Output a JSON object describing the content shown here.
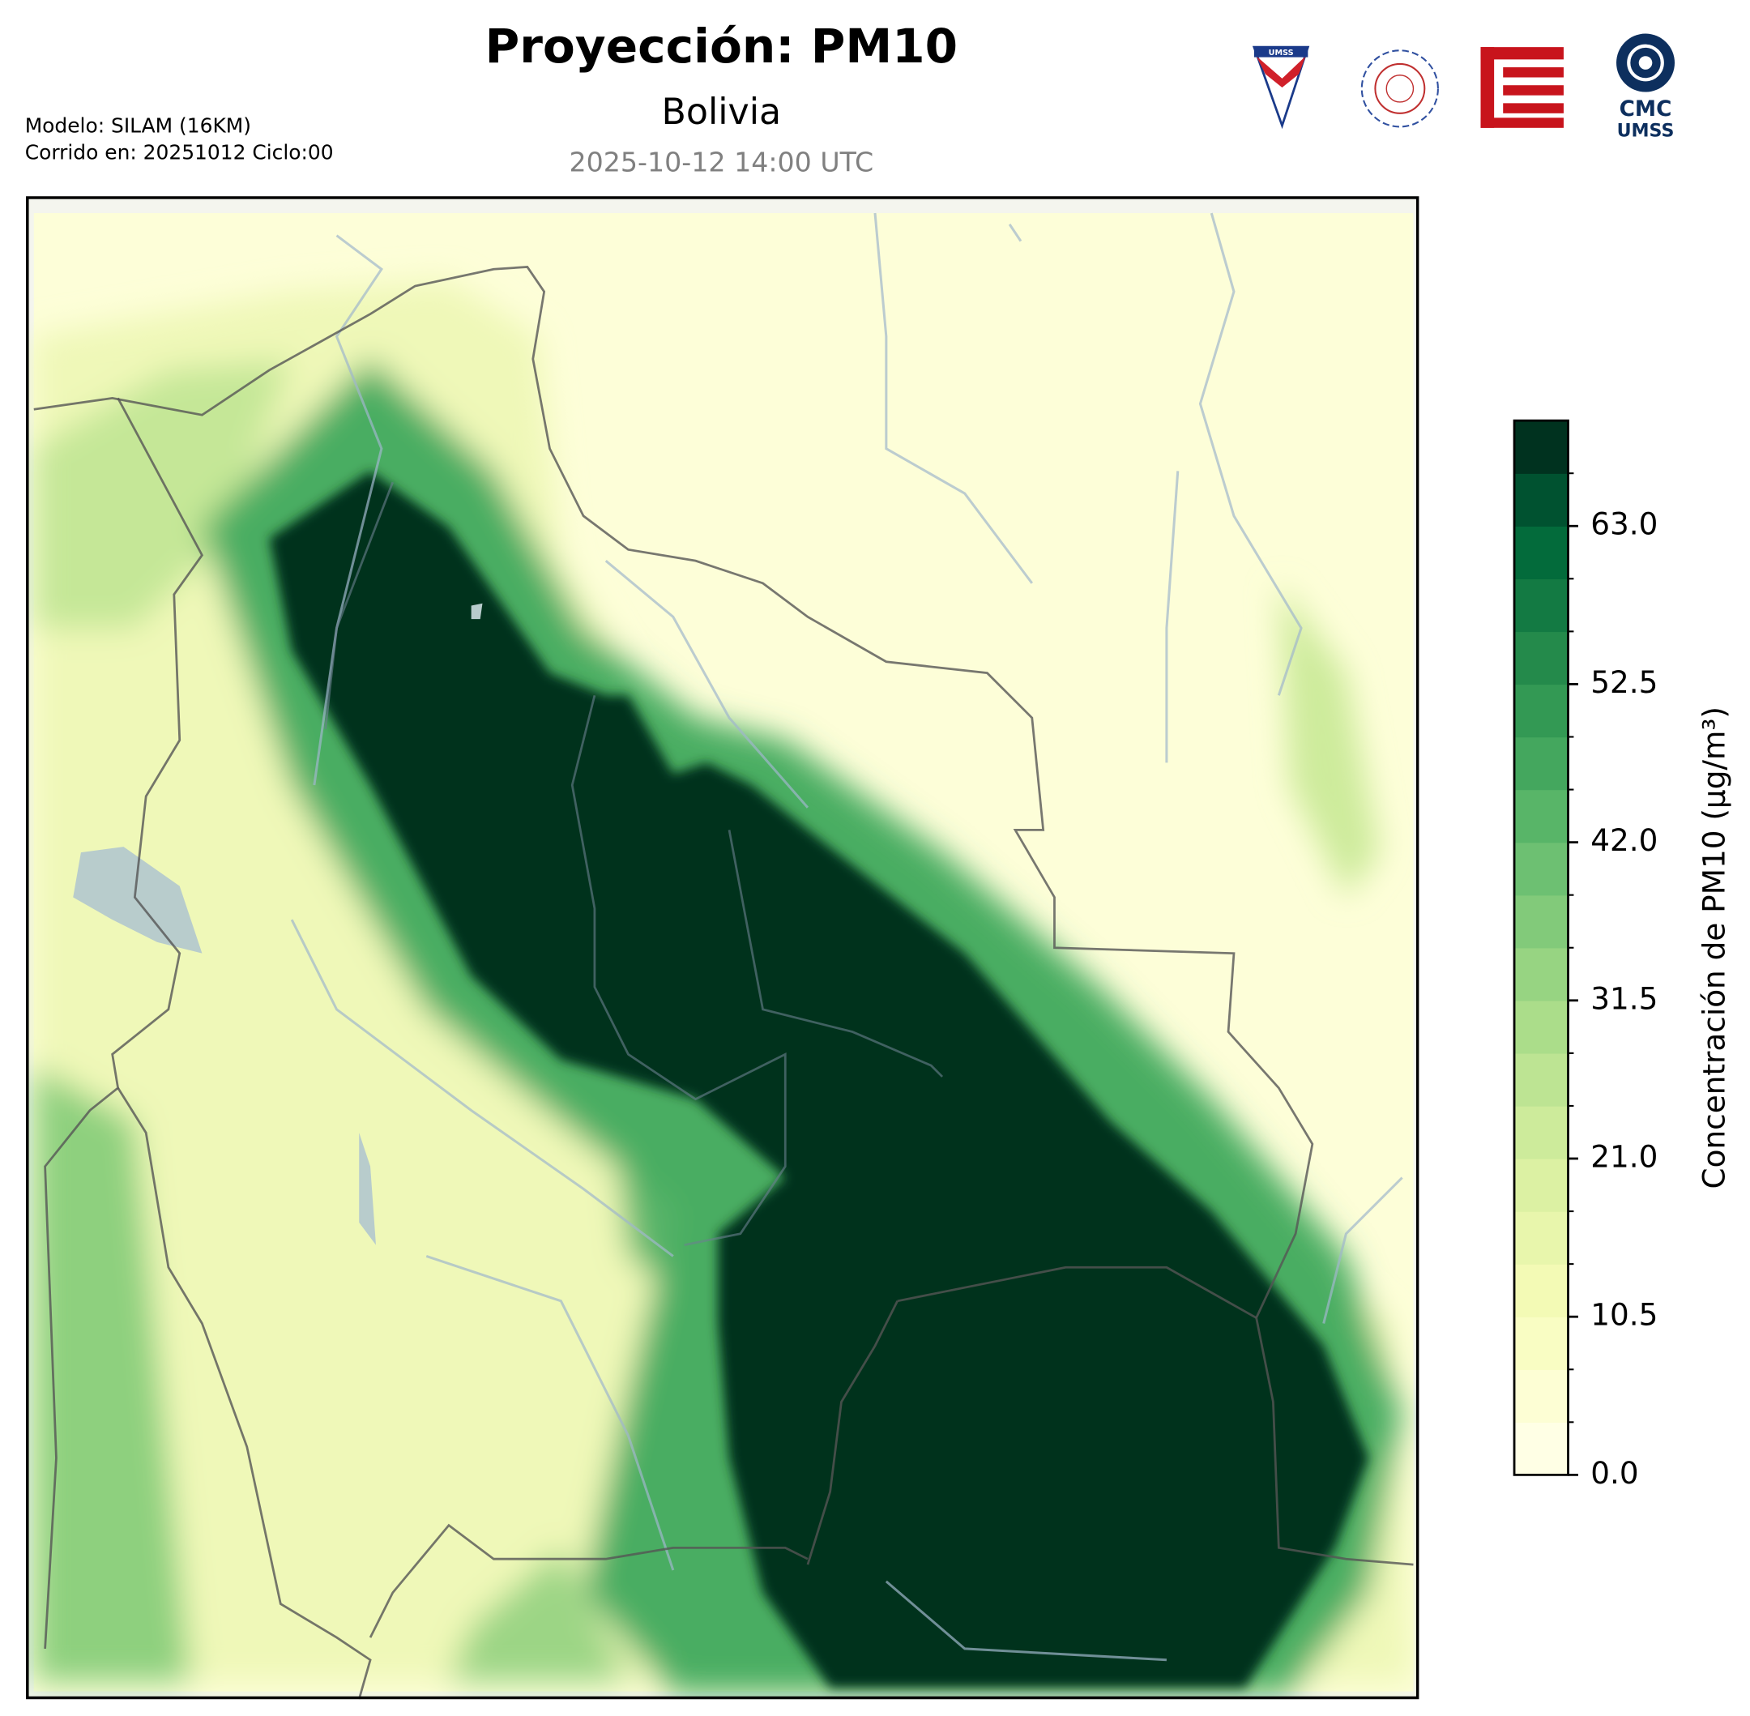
{
  "header": {
    "title": "Proyección: PM10",
    "subtitle": "Bolivia",
    "timestamp": "2025-10-12 14:00 UTC",
    "model": "Modelo: SILAM (16KM)",
    "run": "Corrido en: 20251012 Ciclo:00"
  },
  "logos": {
    "umss_badge": "UMSS",
    "cmc": "CMC",
    "cmc_sub": "UMSS"
  },
  "chart_data": {
    "type": "colorbar",
    "label": "Concentración de PM10 (µg/m³)",
    "ylim": [
      0,
      70
    ],
    "yticks": [
      {
        "value": 0,
        "label": "0.0"
      },
      {
        "value": 10.5,
        "label": "10.5"
      },
      {
        "value": 21,
        "label": "21.0"
      },
      {
        "value": 31.5,
        "label": "31.5"
      },
      {
        "value": 42,
        "label": "42.0"
      },
      {
        "value": 52.5,
        "label": "52.5"
      },
      {
        "value": 63,
        "label": "63.0"
      }
    ],
    "colors": [
      "#ffffe5",
      "#fdfed4",
      "#f9fdc3",
      "#f3fab5",
      "#e8f6ac",
      "#dcf1a3",
      "#cdeb9b",
      "#bde493",
      "#abdd8a",
      "#97d482",
      "#82ca7a",
      "#6dc072",
      "#58b568",
      "#44a75e",
      "#339954",
      "#248a4b",
      "#137a43",
      "#036b3b",
      "#005230",
      "#00321f"
    ]
  }
}
